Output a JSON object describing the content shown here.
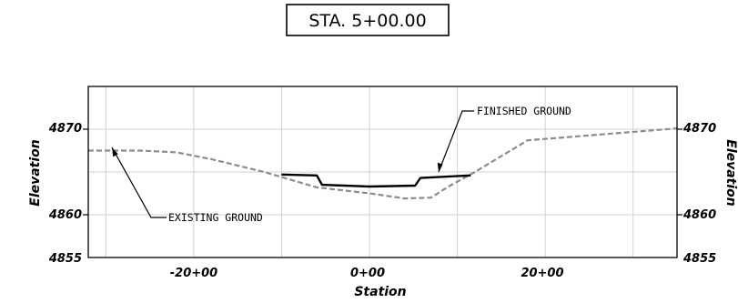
{
  "title": "STA. 5+00.00",
  "axes": {
    "xlabel": "Station",
    "ylabel": "Elevation",
    "x_ticks": [
      "-20+00",
      "0+00",
      "20+00"
    ],
    "y_ticks": [
      "4870",
      "4860",
      "4855"
    ]
  },
  "annotations": {
    "finished_ground": "FINISHED GROUND",
    "existing_ground": "EXISTING GROUND"
  },
  "colors": {
    "existing_ground": "#8c8c8c",
    "finished_ground": "#000000",
    "grid": "#d2d2d2",
    "frame": "#000000"
  },
  "chart_data": {
    "type": "line",
    "title": "STA. 5+00.00",
    "xlabel": "Station",
    "ylabel": "Elevation",
    "xlim": [
      -32,
      35
    ],
    "ylim": [
      4855,
      4875
    ],
    "grid": true,
    "series": [
      {
        "label_ref": "existing_ground",
        "style": "dashed",
        "x": [
          -32,
          -26,
          -22,
          -18,
          -12,
          -6,
          0,
          4,
          7,
          9,
          12,
          18,
          35
        ],
        "y": [
          4867.5,
          4867.5,
          4867.3,
          4866.5,
          4865.0,
          4863.2,
          4862.5,
          4861.9,
          4862.0,
          4863.3,
          4865.0,
          4868.7,
          4870.1
        ]
      },
      {
        "label_ref": "finished_ground",
        "style": "solid",
        "x": [
          -10,
          -6,
          -5.4,
          0,
          5.2,
          5.8,
          11.5
        ],
        "y": [
          4864.7,
          4864.6,
          4863.5,
          4863.3,
          4863.4,
          4864.3,
          4864.6
        ]
      }
    ]
  }
}
